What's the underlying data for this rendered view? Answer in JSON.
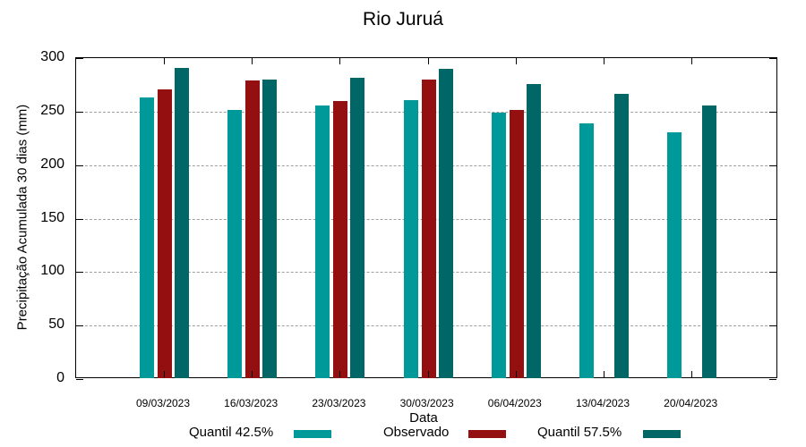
{
  "chart_data": {
    "type": "bar",
    "title": "Rio Juruá",
    "xlabel": "Data",
    "ylabel": "Precipitação Acumulada 30 dias (mm)",
    "ylim": [
      0,
      300
    ],
    "yticks": [
      0,
      50,
      100,
      150,
      200,
      250,
      300
    ],
    "grid": true,
    "legend_position": "bottom",
    "categories": [
      "09/03/2023",
      "16/03/2023",
      "23/03/2023",
      "30/03/2023",
      "06/04/2023",
      "13/04/2023",
      "20/04/2023"
    ],
    "series": [
      {
        "name": "Quantil 42.5%",
        "color": "#009999",
        "values": [
          262,
          251,
          255,
          260,
          248,
          238,
          230
        ]
      },
      {
        "name": "Observado",
        "color": "#941010",
        "values": [
          270,
          278,
          259,
          279,
          251,
          null,
          null
        ]
      },
      {
        "name": "Quantil 57.5%",
        "color": "#006666",
        "values": [
          290,
          279,
          281,
          289,
          275,
          266,
          255
        ]
      }
    ]
  }
}
